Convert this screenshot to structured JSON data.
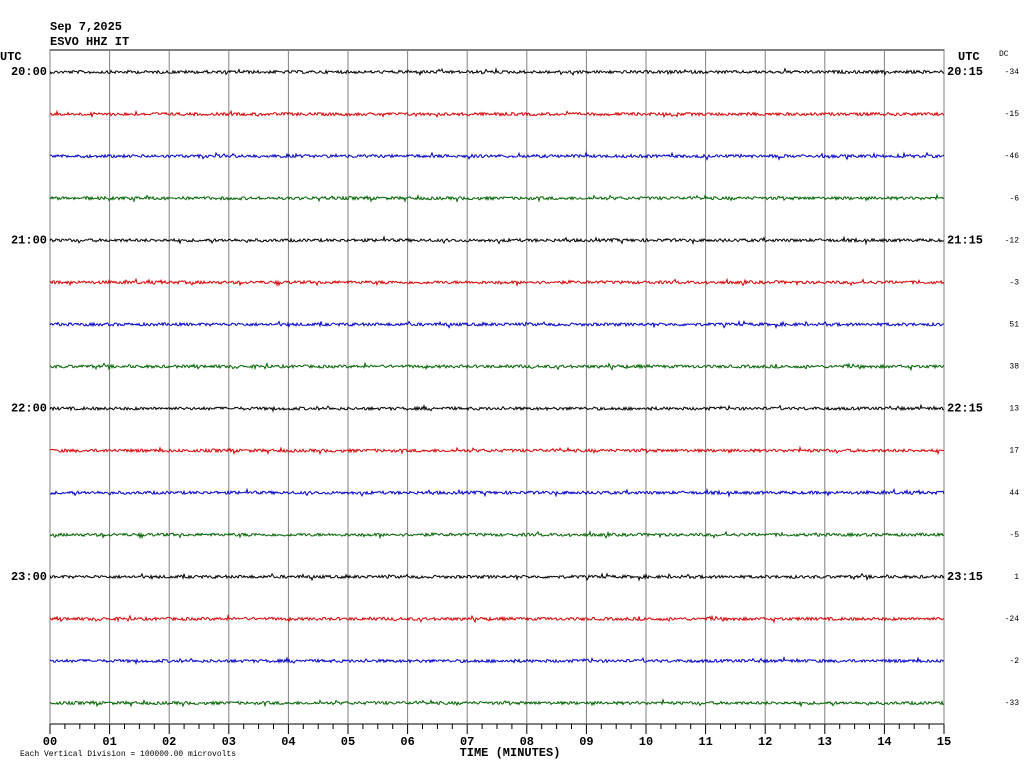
{
  "chart_data": {
    "type": "helicorder",
    "date": "Sep 7,2025",
    "station": "ESVO HHZ IT",
    "left_axis_label": "UTC",
    "right_axis_label": "UTC",
    "dc_label": "DC",
    "row_labels_left": [
      "20:00",
      null,
      null,
      null,
      "21:00",
      null,
      null,
      null,
      "22:00",
      null,
      null,
      null,
      "23:00",
      null,
      null,
      null
    ],
    "row_labels_right": [
      "20:15",
      null,
      null,
      null,
      "21:15",
      null,
      null,
      null,
      "22:15",
      null,
      null,
      null,
      "23:15",
      null,
      null,
      null
    ],
    "dc_values": [
      -34,
      -15,
      -46,
      -6,
      -12,
      -3,
      51,
      38,
      13,
      17,
      44,
      -5,
      1,
      -24,
      -2,
      -33
    ],
    "colors": [
      "#000000",
      "#d80000",
      "#0000c8",
      "#006400"
    ],
    "xlim": [
      0,
      15
    ],
    "xticks": [
      {
        "value": 0,
        "label": "00"
      },
      {
        "value": 1,
        "label": "01"
      },
      {
        "value": 2,
        "label": "02"
      },
      {
        "value": 3,
        "label": "03"
      },
      {
        "value": 4,
        "label": "04"
      },
      {
        "value": 5,
        "label": "05"
      },
      {
        "value": 6,
        "label": "06"
      },
      {
        "value": 7,
        "label": "07"
      },
      {
        "value": 8,
        "label": "08"
      },
      {
        "value": 9,
        "label": "09"
      },
      10,
      11,
      12,
      13,
      14,
      15
    ],
    "xlabel": "TIME (MINUTES)",
    "note": "Each Vertical Division = 100000.00 microvolts",
    "grid": true
  }
}
